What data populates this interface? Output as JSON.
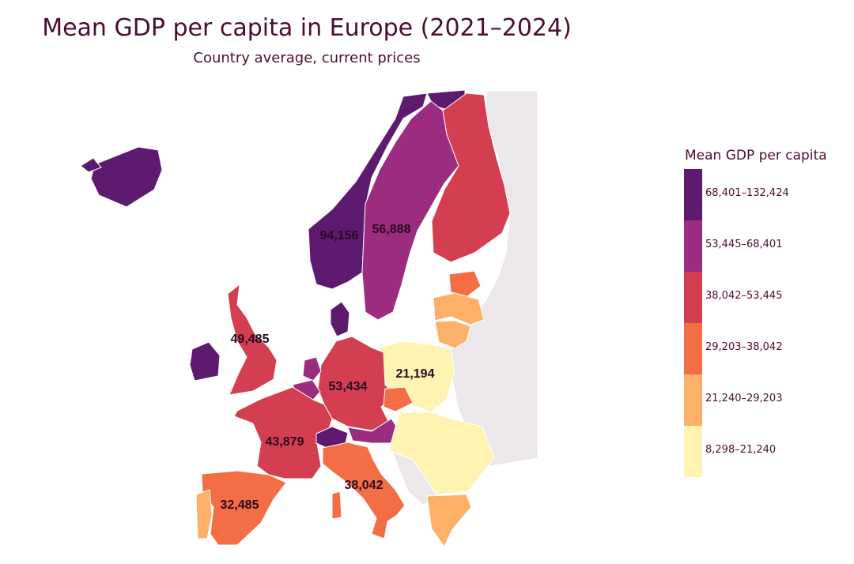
{
  "title": "Mean GDP per capita in Europe (2021–2024)",
  "subtitle": "Country average, current prices",
  "legend": {
    "title": "Mean GDP per capita",
    "bins": [
      {
        "label": "68,401–132,424",
        "color": "#5e1a6f"
      },
      {
        "label": "53,445–68,401",
        "color": "#9c2c7f"
      },
      {
        "label": "38,042–53,445",
        "color": "#d33e50"
      },
      {
        "label": "29,203–38,042",
        "color": "#f36e45"
      },
      {
        "label": "21,240–29,203",
        "color": "#fcb068"
      },
      {
        "label": "8,298–21,240",
        "color": "#fff3b2"
      }
    ]
  },
  "no_data_color": "#ece7ea",
  "chart_data": {
    "type": "choropleth",
    "value_labels": [
      {
        "text": "94,156",
        "bin": 0
      },
      {
        "text": "56,888",
        "bin": 1
      },
      {
        "text": "49,485",
        "bin": 2
      },
      {
        "text": "53,434",
        "bin": 2
      },
      {
        "text": "21,194",
        "bin": 5
      },
      {
        "text": "43,879",
        "bin": 2
      },
      {
        "text": "38,042",
        "bin": 3
      },
      {
        "text": "32,485",
        "bin": 3
      }
    ]
  }
}
